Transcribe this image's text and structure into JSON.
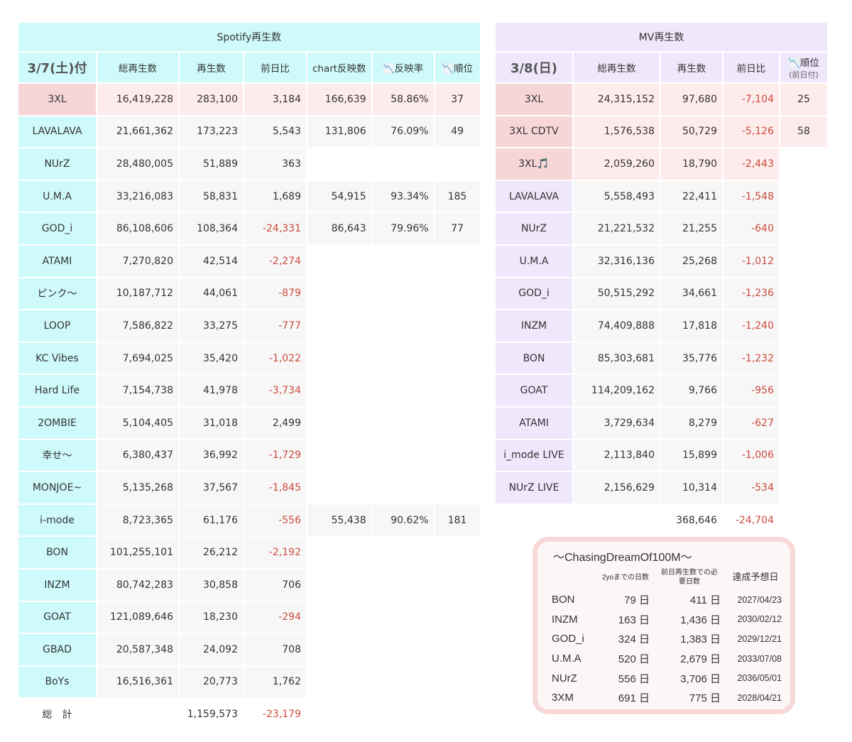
{
  "spotify": {
    "title": "Spotify再生数",
    "headers": [
      "3/7(土)付",
      "総再生数",
      "再生数",
      "前日比",
      "chart反映数",
      "📉反映率",
      "📉順位"
    ],
    "rows": [
      [
        "3XL",
        "16,419,228",
        "283,100",
        "3,184",
        "166,639",
        "58.86%",
        "37"
      ],
      [
        "LAVALAVA",
        "21,661,362",
        "173,223",
        "5,543",
        "131,806",
        "76.09%",
        "49"
      ],
      [
        "NUrZ",
        "28,480,005",
        "51,889",
        "363",
        "",
        "",
        ""
      ],
      [
        "U.M.A",
        "33,216,083",
        "58,831",
        "1,689",
        "54,915",
        "93.34%",
        "185"
      ],
      [
        "GOD_i",
        "86,108,606",
        "108,364",
        "-24,331",
        "86,643",
        "79.96%",
        "77"
      ],
      [
        "ATAMI",
        "7,270,820",
        "42,514",
        "-2,274",
        "",
        "",
        ""
      ],
      [
        "ピンク〜",
        "10,187,712",
        "44,061",
        "-879",
        "",
        "",
        ""
      ],
      [
        "LOOP",
        "7,586,822",
        "33,275",
        "-777",
        "",
        "",
        ""
      ],
      [
        "KC Vibes",
        "7,694,025",
        "35,420",
        "-1,022",
        "",
        "",
        ""
      ],
      [
        "Hard Life",
        "7,154,738",
        "41,978",
        "-3,734",
        "",
        "",
        ""
      ],
      [
        "2OMBIE",
        "5,104,405",
        "31,018",
        "2,499",
        "",
        "",
        ""
      ],
      [
        "幸せ〜",
        "6,380,437",
        "36,992",
        "-1,729",
        "",
        "",
        ""
      ],
      [
        "MONJOE~",
        "5,135,268",
        "37,567",
        "-1,845",
        "",
        "",
        ""
      ],
      [
        "i-mode",
        "8,723,365",
        "61,176",
        "-556",
        "55,438",
        "90.62%",
        "181"
      ],
      [
        "BON",
        "101,255,101",
        "26,212",
        "-2,192",
        "",
        "",
        ""
      ],
      [
        "INZM",
        "80,742,283",
        "30,858",
        "706",
        "",
        "",
        ""
      ],
      [
        "GOAT",
        "121,089,646",
        "18,230",
        "-294",
        "",
        "",
        ""
      ],
      [
        "GBAD",
        "20,587,348",
        "24,092",
        "708",
        "",
        "",
        ""
      ],
      [
        "BoYs",
        "16,516,361",
        "20,773",
        "1,762",
        "",
        "",
        ""
      ]
    ],
    "total": [
      "総　計",
      "",
      "1,159,573",
      "-23,179"
    ]
  },
  "mv": {
    "title": "MV再生数",
    "headers": [
      "3/8(日)",
      "総再生数",
      "再生数",
      "前日比",
      "📉順位"
    ],
    "rank_sub": "(前日付)",
    "rows": [
      [
        "3XL",
        "24,315,152",
        "97,680",
        "-7,104",
        "25"
      ],
      [
        "3XL CDTV",
        "1,576,538",
        "50,729",
        "-5,126",
        "58"
      ],
      [
        "3XL🎵",
        "2,059,260",
        "18,790",
        "-2,443",
        ""
      ],
      [
        "LAVALAVA",
        "5,558,493",
        "22,411",
        "-1,548",
        ""
      ],
      [
        "NUrZ",
        "21,221,532",
        "21,255",
        "-640",
        ""
      ],
      [
        "U.M.A",
        "32,316,136",
        "25,268",
        "-1,012",
        ""
      ],
      [
        "GOD_i",
        "50,515,292",
        "34,661",
        "-1,236",
        ""
      ],
      [
        "INZM",
        "74,409,888",
        "17,818",
        "-1,240",
        ""
      ],
      [
        "BON",
        "85,303,681",
        "35,776",
        "-1,232",
        ""
      ],
      [
        "GOAT",
        "114,209,162",
        "9,766",
        "-956",
        ""
      ],
      [
        "ATAMI",
        "3,729,634",
        "8,279",
        "-627",
        ""
      ],
      [
        "i_mode LIVE",
        "2,113,840",
        "15,899",
        "-1,006",
        ""
      ],
      [
        "NUrZ LIVE",
        "2,156,629",
        "10,314",
        "-534",
        ""
      ]
    ],
    "total": [
      "",
      "",
      "368,646",
      "-24,704",
      ""
    ]
  },
  "dream": {
    "title": "〜ChasingDreamOf100M〜",
    "headers": [
      "",
      "2yoまでの日数",
      "前日再生数での必要日数",
      "達成予想日"
    ],
    "rows": [
      [
        "BON",
        "79 日",
        "411 日",
        "2027/04/23"
      ],
      [
        "INZM",
        "163 日",
        "1,436 日",
        "2030/02/12"
      ],
      [
        "GOD_i",
        "324 日",
        "1,383 日",
        "2029/12/21"
      ],
      [
        "U.M.A",
        "520 日",
        "2,679 日",
        "2033/07/08"
      ],
      [
        "NUrZ",
        "556 日",
        "3,706 日",
        "2036/05/01"
      ],
      [
        "3XM",
        "691 日",
        "775 日",
        "2028/04/21"
      ]
    ]
  }
}
